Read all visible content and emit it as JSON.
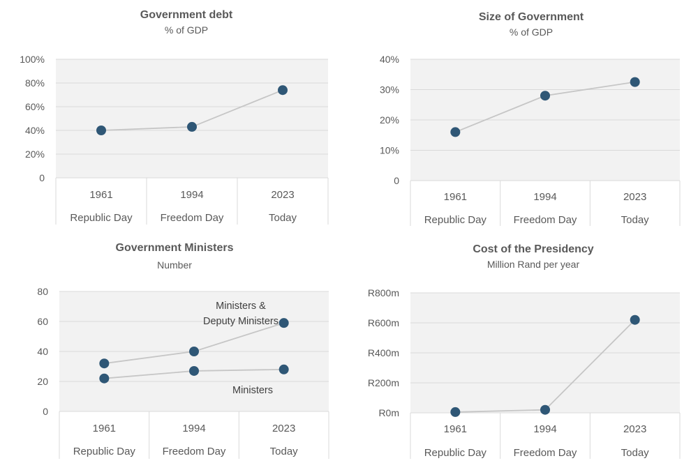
{
  "chart_data": [
    {
      "type": "line",
      "title": "Government debt",
      "subtitle": "% of GDP",
      "categories": [
        "1961",
        "1994",
        "2023"
      ],
      "category_sublabels": [
        "Republic Day",
        "Freedom Day",
        "Today"
      ],
      "y_ticks": [
        "0",
        "20%",
        "40%",
        "60%",
        "80%",
        "100%"
      ],
      "ylim": [
        0,
        100
      ],
      "grid": true,
      "marker_color": "#2f5776",
      "series": [
        {
          "values": [
            40,
            43,
            74
          ]
        }
      ]
    },
    {
      "type": "line",
      "title": "Size of Government",
      "subtitle": "% of GDP",
      "categories": [
        "1961",
        "1994",
        "2023"
      ],
      "category_sublabels": [
        "Republic Day",
        "Freedom Day",
        "Today"
      ],
      "y_ticks": [
        "0",
        "10%",
        "20%",
        "30%",
        "40%"
      ],
      "ylim": [
        0,
        40
      ],
      "grid": true,
      "marker_color": "#2f5776",
      "series": [
        {
          "values": [
            16,
            28,
            32.5
          ]
        }
      ]
    },
    {
      "type": "line",
      "title": "Government Ministers",
      "subtitle": "Number",
      "categories": [
        "1961",
        "1994",
        "2023"
      ],
      "category_sublabels": [
        "Republic Day",
        "Freedom Day",
        "Today"
      ],
      "y_ticks": [
        "0",
        "20",
        "40",
        "60",
        "80"
      ],
      "ylim": [
        0,
        80
      ],
      "grid": true,
      "marker_color": "#2f5776",
      "series": [
        {
          "name": "Ministers & Deputy Ministers",
          "name_lines": [
            "Ministers &",
            "Deputy Ministers"
          ],
          "values": [
            32,
            40,
            59
          ]
        },
        {
          "name": "Ministers",
          "name_lines": [
            "Ministers"
          ],
          "values": [
            22,
            27,
            28
          ]
        }
      ]
    },
    {
      "type": "line",
      "title": "Cost of the Presidency",
      "subtitle": "Million Rand per year",
      "categories": [
        "1961",
        "1994",
        "2023"
      ],
      "category_sublabels": [
        "Republic Day",
        "Freedom Day",
        "Today"
      ],
      "y_ticks": [
        "R0m",
        "R200m",
        "R400m",
        "R600m",
        "R800m"
      ],
      "ylim": [
        0,
        800
      ],
      "grid": true,
      "marker_color": "#2f5776",
      "series": [
        {
          "values": [
            5,
            20,
            620
          ]
        }
      ]
    }
  ]
}
